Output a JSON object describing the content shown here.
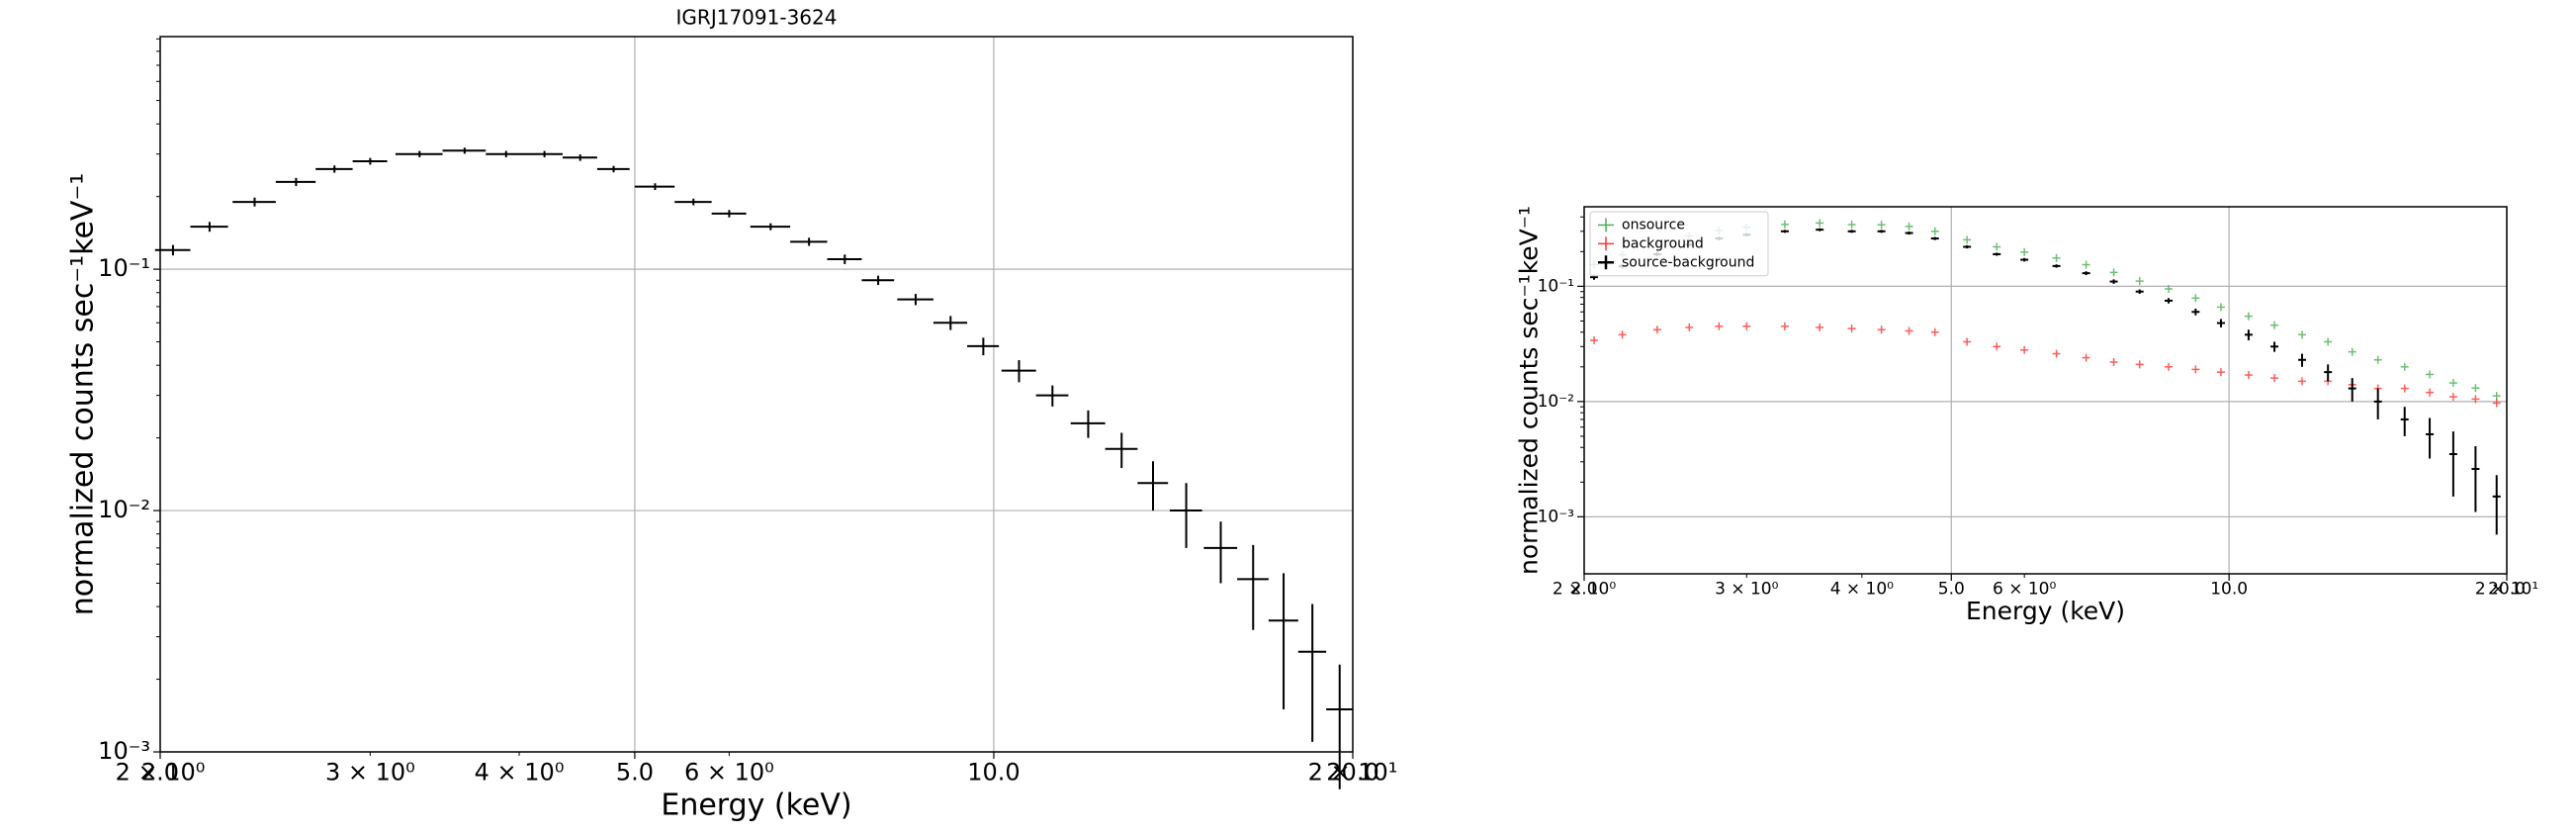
{
  "chart_data": [
    {
      "type": "errorbar",
      "title": "IGRJ17091-3624",
      "xlabel": "Energy (keV)",
      "ylabel": "normalized counts sec⁻¹keV⁻¹",
      "xscale": "log",
      "yscale": "log",
      "xlim": [
        2.0,
        20.0
      ],
      "ylim": [
        0.001,
        0.92
      ],
      "grid": true,
      "xticks": [
        {
          "value": 2,
          "label": "2.0"
        },
        {
          "value": 5,
          "label": "5.0"
        },
        {
          "value": 10,
          "label": "10.0"
        },
        {
          "value": 20,
          "label": "20.0"
        }
      ],
      "xminorticks": [
        {
          "value": 2,
          "label": "2 × 10⁰"
        },
        {
          "value": 3,
          "label": "3 × 10⁰"
        },
        {
          "value": 4,
          "label": "4 × 10⁰"
        },
        {
          "value": 6,
          "label": "6 × 10⁰"
        },
        {
          "value": 20,
          "label": "2 × 10¹"
        }
      ],
      "yticks": [
        {
          "value": 0.001,
          "label": "10⁻³"
        },
        {
          "value": 0.01,
          "label": "10⁻²"
        },
        {
          "value": 0.1,
          "label": "10⁻¹"
        }
      ],
      "x": [
        2.05,
        2.2,
        2.4,
        2.6,
        2.8,
        3.0,
        3.3,
        3.6,
        3.9,
        4.2,
        4.5,
        4.8,
        5.2,
        5.6,
        6.0,
        6.5,
        7.0,
        7.5,
        8.0,
        8.6,
        9.2,
        9.8,
        10.5,
        11.2,
        12.0,
        12.8,
        13.6,
        14.5,
        15.5,
        16.5,
        17.5,
        18.5,
        19.5
      ],
      "xerr": [
        0.07,
        0.08,
        0.1,
        0.1,
        0.1,
        0.1,
        0.15,
        0.15,
        0.15,
        0.15,
        0.15,
        0.15,
        0.2,
        0.2,
        0.2,
        0.25,
        0.25,
        0.25,
        0.25,
        0.3,
        0.3,
        0.3,
        0.35,
        0.35,
        0.4,
        0.4,
        0.4,
        0.45,
        0.5,
        0.5,
        0.5,
        0.5,
        0.5
      ],
      "series": [
        {
          "color": "#000000",
          "marker": "errorbar",
          "values": [
            0.12,
            0.15,
            0.19,
            0.23,
            0.26,
            0.28,
            0.3,
            0.31,
            0.3,
            0.3,
            0.29,
            0.26,
            0.22,
            0.19,
            0.17,
            0.15,
            0.13,
            0.11,
            0.09,
            0.075,
            0.06,
            0.048,
            0.038,
            0.03,
            0.023,
            0.018,
            0.013,
            0.01,
            0.007,
            0.0052,
            0.0035,
            0.0026,
            0.0015
          ],
          "yerr": [
            0.006,
            0.007,
            0.008,
            0.009,
            0.009,
            0.009,
            0.009,
            0.009,
            0.009,
            0.009,
            0.009,
            0.008,
            0.007,
            0.006,
            0.006,
            0.005,
            0.005,
            0.005,
            0.004,
            0.004,
            0.004,
            0.004,
            0.004,
            0.003,
            0.003,
            0.003,
            0.003,
            0.003,
            0.002,
            0.002,
            0.002,
            0.0015,
            0.0008
          ]
        }
      ]
    },
    {
      "type": "errorbar",
      "xlabel": "Energy (keV)",
      "ylabel": "normalized counts sec⁻¹keV⁻¹",
      "xscale": "log",
      "yscale": "log",
      "xlim": [
        2.0,
        20.0
      ],
      "ylim": [
        0.00032,
        0.49
      ],
      "grid": true,
      "legend": "upper left",
      "xticks": [
        {
          "value": 2,
          "label": "2.0"
        },
        {
          "value": 5,
          "label": "5.0"
        },
        {
          "value": 10,
          "label": "10.0"
        },
        {
          "value": 20,
          "label": "20.0"
        }
      ],
      "xminorticks": [
        {
          "value": 2,
          "label": "2 × 10⁰"
        },
        {
          "value": 3,
          "label": "3 × 10⁰"
        },
        {
          "value": 4,
          "label": "4 × 10⁰"
        },
        {
          "value": 6,
          "label": "6 × 10⁰"
        },
        {
          "value": 20,
          "label": "2 × 10¹"
        }
      ],
      "yticks": [
        {
          "value": 0.001,
          "label": "10⁻³"
        },
        {
          "value": 0.01,
          "label": "10⁻²"
        },
        {
          "value": 0.1,
          "label": "10⁻¹"
        }
      ],
      "x": [
        2.05,
        2.2,
        2.4,
        2.6,
        2.8,
        3.0,
        3.3,
        3.6,
        3.9,
        4.2,
        4.5,
        4.8,
        5.2,
        5.6,
        6.0,
        6.5,
        7.0,
        7.5,
        8.0,
        8.6,
        9.2,
        9.8,
        10.5,
        11.2,
        12.0,
        12.8,
        13.6,
        14.5,
        15.5,
        16.5,
        17.5,
        18.5,
        19.5
      ],
      "series": [
        {
          "name": "onsource",
          "color": "#4caf50",
          "marker": "plus",
          "values": [
            0.154,
            0.188,
            0.232,
            0.274,
            0.305,
            0.325,
            0.345,
            0.354,
            0.343,
            0.342,
            0.331,
            0.3,
            0.253,
            0.22,
            0.198,
            0.176,
            0.154,
            0.132,
            0.111,
            0.095,
            0.079,
            0.066,
            0.055,
            0.046,
            0.038,
            0.033,
            0.027,
            0.023,
            0.02,
            0.0172,
            0.0145,
            0.0131,
            0.0112
          ]
        },
        {
          "name": "background",
          "color": "#ff3333",
          "marker": "plus",
          "values": [
            0.034,
            0.038,
            0.042,
            0.044,
            0.045,
            0.045,
            0.045,
            0.044,
            0.043,
            0.042,
            0.041,
            0.04,
            0.033,
            0.03,
            0.028,
            0.026,
            0.024,
            0.022,
            0.021,
            0.02,
            0.019,
            0.018,
            0.017,
            0.016,
            0.015,
            0.015,
            0.014,
            0.013,
            0.013,
            0.012,
            0.011,
            0.0105,
            0.0097
          ]
        },
        {
          "name": "source-background",
          "color": "#000000",
          "marker": "errorbar",
          "values": [
            0.12,
            0.15,
            0.19,
            0.23,
            0.26,
            0.28,
            0.3,
            0.31,
            0.3,
            0.3,
            0.29,
            0.26,
            0.22,
            0.19,
            0.17,
            0.15,
            0.13,
            0.11,
            0.09,
            0.075,
            0.06,
            0.048,
            0.038,
            0.03,
            0.023,
            0.018,
            0.013,
            0.01,
            0.007,
            0.0052,
            0.0035,
            0.0026,
            0.0015
          ],
          "yerr": [
            0.006,
            0.007,
            0.008,
            0.009,
            0.009,
            0.009,
            0.009,
            0.009,
            0.009,
            0.009,
            0.009,
            0.008,
            0.007,
            0.006,
            0.006,
            0.005,
            0.005,
            0.005,
            0.004,
            0.004,
            0.004,
            0.004,
            0.004,
            0.003,
            0.003,
            0.003,
            0.003,
            0.003,
            0.002,
            0.002,
            0.002,
            0.0015,
            0.0008
          ]
        }
      ]
    }
  ]
}
